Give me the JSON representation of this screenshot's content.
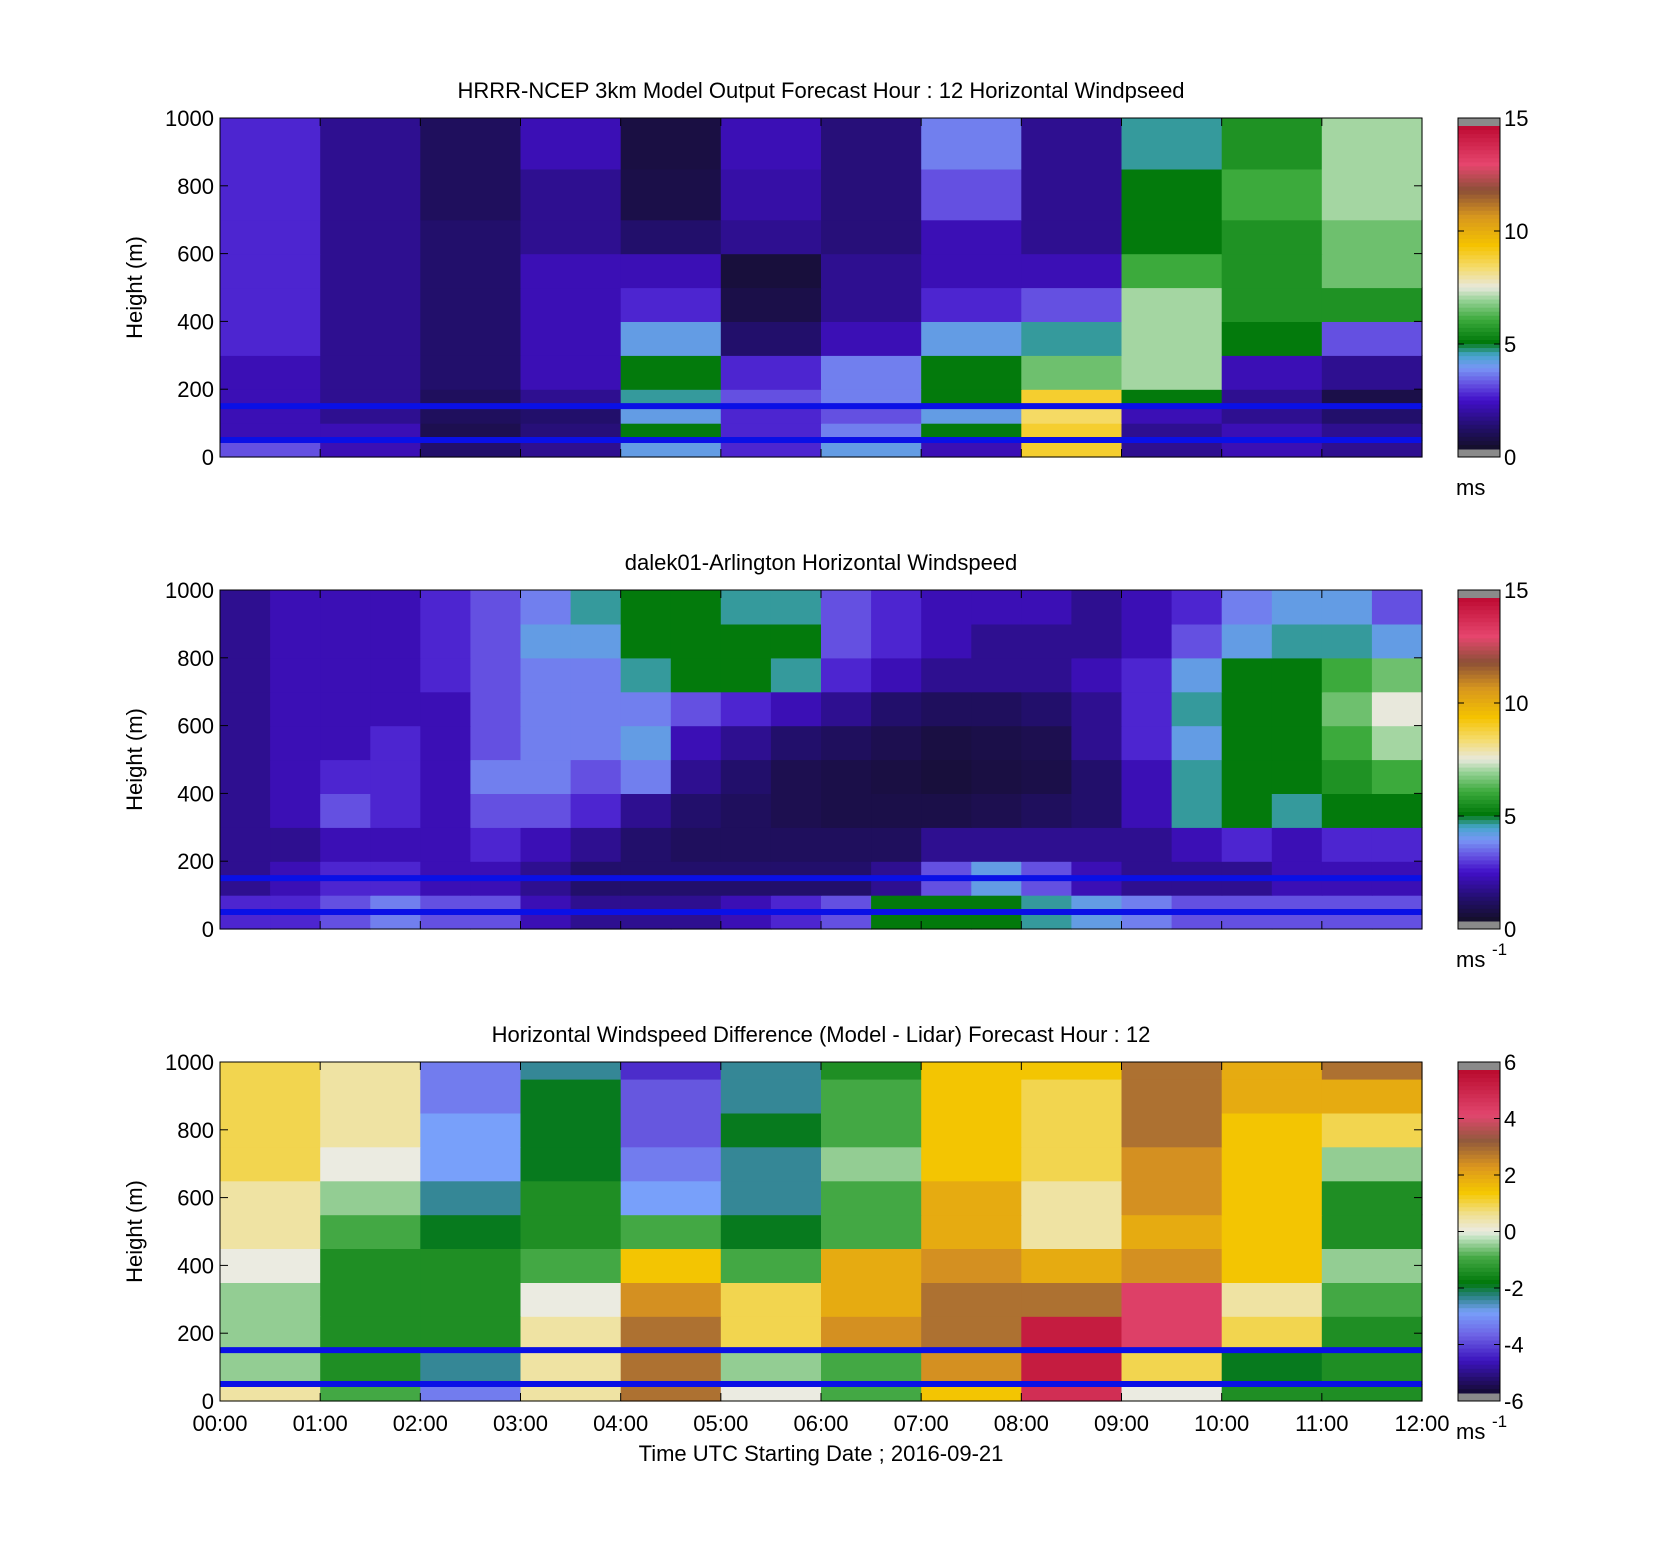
{
  "chart_data": [
    {
      "type": "heatmap",
      "title": "HRRR-NCEP 3km Model Output   Forecast Hour : 12 Horizontal Windpseed",
      "xlabel": "",
      "ylabel": "Height (m)",
      "xlim": [
        0,
        12
      ],
      "ylim": [
        0,
        1000
      ],
      "yticks": [
        "0",
        "200",
        "400",
        "600",
        "800",
        "1000"
      ],
      "colorbar": {
        "min": 0,
        "max": 15,
        "ticks": [
          "0",
          "5",
          "10",
          "15"
        ],
        "unit": "ms",
        "unit_sup": ""
      },
      "reference_lines_m": [
        150,
        50
      ],
      "line_color": "#0a10e6",
      "columns_hours": [
        0,
        1,
        2,
        3,
        4,
        5,
        6,
        7,
        8,
        9,
        10,
        11
      ],
      "levels_m": [
        50,
        100,
        150,
        200,
        300,
        400,
        500,
        600,
        700,
        850,
        1000
      ],
      "values": [
        [
          3.0,
          2.0,
          1.0,
          1.5,
          4.0,
          2.5,
          4.0,
          2.0,
          9.0,
          1.5,
          2.0,
          1.5
        ],
        [
          2.0,
          2.0,
          0.6,
          1.2,
          5.0,
          2.5,
          3.5,
          5.0,
          9.0,
          1.5,
          2.0,
          1.5
        ],
        [
          2.0,
          1.5,
          0.8,
          1.0,
          4.0,
          2.5,
          3.0,
          4.0,
          8.5,
          2.0,
          1.5,
          1.0
        ],
        [
          2.0,
          1.5,
          0.8,
          1.5,
          4.5,
          3.0,
          3.5,
          5.0,
          9.0,
          5.0,
          1.5,
          0.5
        ],
        [
          2.0,
          1.5,
          1.0,
          2.0,
          5.0,
          2.5,
          3.5,
          5.0,
          6.5,
          7.0,
          2.0,
          1.5
        ],
        [
          2.5,
          1.5,
          1.0,
          2.0,
          4.0,
          1.0,
          2.0,
          4.0,
          4.5,
          7.0,
          5.0,
          3.0
        ],
        [
          2.5,
          1.5,
          1.0,
          2.0,
          2.5,
          0.5,
          1.5,
          2.5,
          3.0,
          7.0,
          5.5,
          5.5
        ],
        [
          2.5,
          1.5,
          1.0,
          2.0,
          2.0,
          0.3,
          1.5,
          2.0,
          2.0,
          6.0,
          5.5,
          6.5
        ],
        [
          2.5,
          1.5,
          1.0,
          1.5,
          1.0,
          1.5,
          1.2,
          2.0,
          1.5,
          5.0,
          5.5,
          6.5
        ],
        [
          2.5,
          1.5,
          0.8,
          1.5,
          0.5,
          1.8,
          1.2,
          3.0,
          1.5,
          5.0,
          6.0,
          7.0
        ],
        [
          2.5,
          1.5,
          0.8,
          2.0,
          0.4,
          2.0,
          1.2,
          3.5,
          1.5,
          4.5,
          5.5,
          7.0
        ]
      ]
    },
    {
      "type": "heatmap",
      "title": "dalek01-Arlington  Horizontal Windspeed",
      "xlabel": "",
      "ylabel": "Height (m)",
      "xlim": [
        0,
        12
      ],
      "ylim": [
        0,
        1000
      ],
      "yticks": [
        "0",
        "200",
        "400",
        "600",
        "800",
        "1000"
      ],
      "colorbar": {
        "min": 0,
        "max": 15,
        "ticks": [
          "0",
          "5",
          "10",
          "15"
        ],
        "unit": "ms",
        "unit_sup": "-1"
      },
      "reference_lines_m": [
        150,
        50
      ],
      "line_color": "#0a10e6",
      "columns_hours": [
        0,
        0.5,
        1,
        1.5,
        2,
        2.5,
        3,
        3.5,
        4,
        4.5,
        5,
        5.5,
        6,
        6.5,
        7,
        7.5,
        8,
        8.5,
        9,
        9.5,
        10,
        10.5,
        11,
        11.5
      ],
      "levels_m": [
        100,
        200,
        300,
        400,
        500,
        600,
        700,
        800,
        900,
        1000
      ],
      "values": [
        [
          2.5,
          2.5,
          3.0,
          3.5,
          3.0,
          3.0,
          2.0,
          1.5,
          1.5,
          1.5,
          2.0,
          2.5,
          3.0,
          5.0,
          5.0,
          5.0,
          4.5,
          4.0,
          3.5,
          3.0,
          3.0,
          3.0,
          3.0,
          3.0
        ],
        [
          1.5,
          2.0,
          2.5,
          2.5,
          2.0,
          2.0,
          1.5,
          1.0,
          1.0,
          1.0,
          1.0,
          1.0,
          1.0,
          1.5,
          3.0,
          4.0,
          3.0,
          2.0,
          1.5,
          1.5,
          1.5,
          2.0,
          2.0,
          2.0
        ],
        [
          1.5,
          1.5,
          2.0,
          2.0,
          2.0,
          2.5,
          2.0,
          1.5,
          1.0,
          0.8,
          0.8,
          0.8,
          0.8,
          0.8,
          1.5,
          1.5,
          1.5,
          1.5,
          1.5,
          2.0,
          2.5,
          2.0,
          2.5,
          2.5
        ],
        [
          1.5,
          2.0,
          3.0,
          2.5,
          2.0,
          3.0,
          3.0,
          2.5,
          1.5,
          1.0,
          0.8,
          0.6,
          0.5,
          0.5,
          0.5,
          0.6,
          0.8,
          1.0,
          2.0,
          4.5,
          5.0,
          4.5,
          5.0,
          5.0
        ],
        [
          1.5,
          2.0,
          2.5,
          2.5,
          2.0,
          3.5,
          3.5,
          3.0,
          3.5,
          1.5,
          1.0,
          0.6,
          0.5,
          0.4,
          0.3,
          0.4,
          0.5,
          1.0,
          2.0,
          4.5,
          5.0,
          5.0,
          5.5,
          6.0
        ],
        [
          1.5,
          2.0,
          2.0,
          2.5,
          2.0,
          3.0,
          3.5,
          3.5,
          4.0,
          2.0,
          1.5,
          1.0,
          0.8,
          0.6,
          0.4,
          0.5,
          0.6,
          1.5,
          2.5,
          4.0,
          5.0,
          5.0,
          6.0,
          7.0
        ],
        [
          1.5,
          2.0,
          2.0,
          2.0,
          2.0,
          3.0,
          3.5,
          3.5,
          3.5,
          3.0,
          2.5,
          2.0,
          1.5,
          1.0,
          0.8,
          0.8,
          1.0,
          1.5,
          2.5,
          4.5,
          5.0,
          5.0,
          6.5,
          7.5
        ],
        [
          1.5,
          2.0,
          2.0,
          2.0,
          2.5,
          3.0,
          3.5,
          3.5,
          4.5,
          5.0,
          5.0,
          4.5,
          2.5,
          2.0,
          1.5,
          1.5,
          1.5,
          2.0,
          2.5,
          4.0,
          5.0,
          5.0,
          6.0,
          6.5
        ],
        [
          1.5,
          2.0,
          2.0,
          2.0,
          2.5,
          3.0,
          4.0,
          4.0,
          5.0,
          5.0,
          5.0,
          5.0,
          3.0,
          2.5,
          2.0,
          1.5,
          1.5,
          1.5,
          2.0,
          3.0,
          4.0,
          4.5,
          4.5,
          4.0
        ],
        [
          1.5,
          2.0,
          2.0,
          2.0,
          2.5,
          3.0,
          3.5,
          4.5,
          5.0,
          5.0,
          4.5,
          4.5,
          3.0,
          2.5,
          2.0,
          2.0,
          2.0,
          1.5,
          2.0,
          2.5,
          3.5,
          4.0,
          4.0,
          3.0
        ]
      ]
    },
    {
      "type": "heatmap",
      "title": "Horizontal Windspeed Difference (Model - Lidar) Forecast Hour : 12",
      "xlabel": "Time UTC  Starting Date ; 2016-09-21",
      "ylabel": "Height (m)",
      "xlim": [
        0,
        12
      ],
      "ylim": [
        0,
        1000
      ],
      "xticks": [
        "00:00",
        "01:00",
        "02:00",
        "03:00",
        "04:00",
        "05:00",
        "06:00",
        "07:00",
        "08:00",
        "09:00",
        "10:00",
        "11:00",
        "12:00"
      ],
      "yticks": [
        "0",
        "200",
        "400",
        "600",
        "800",
        "1000"
      ],
      "colorbar": {
        "min": -6,
        "max": 6,
        "ticks": [
          "-6",
          "-4",
          "-2",
          "0",
          "2",
          "4",
          "6"
        ],
        "unit": "ms",
        "unit_sup": "-1"
      },
      "reference_lines_m": [
        150,
        50
      ],
      "line_color": "#0a10e6",
      "columns_hours": [
        0,
        1,
        2,
        3,
        4,
        5,
        6,
        7,
        8,
        9,
        10,
        11
      ],
      "levels_m": [
        50,
        150,
        250,
        350,
        450,
        550,
        650,
        750,
        850,
        950,
        1000
      ],
      "values": [
        [
          0.5,
          -1.0,
          -3.5,
          0.5,
          3.0,
          0.0,
          -1.0,
          1.5,
          5.0,
          0.0,
          -1.5,
          -1.5
        ],
        [
          -0.5,
          -1.5,
          -2.5,
          0.5,
          3.0,
          -0.5,
          -1.0,
          2.5,
          5.5,
          1.0,
          -2.0,
          -1.5
        ],
        [
          -0.5,
          -1.5,
          -1.5,
          0.5,
          3.0,
          1.0,
          2.5,
          3.0,
          5.5,
          4.5,
          1.0,
          -1.5
        ],
        [
          -0.5,
          -1.5,
          -1.5,
          0.0,
          2.5,
          1.0,
          2.0,
          3.0,
          3.0,
          4.5,
          0.5,
          -1.0
        ],
        [
          0.0,
          -1.5,
          -1.5,
          -1.0,
          1.5,
          -1.0,
          2.0,
          2.5,
          2.0,
          2.5,
          1.5,
          -0.5
        ],
        [
          0.5,
          -1.0,
          -2.0,
          -1.5,
          -1.0,
          -2.0,
          -1.0,
          2.0,
          0.5,
          2.0,
          1.5,
          -1.5
        ],
        [
          0.5,
          -0.5,
          -2.5,
          -1.5,
          -3.0,
          -2.5,
          -1.0,
          2.0,
          0.5,
          2.5,
          1.5,
          -1.5
        ],
        [
          1.0,
          0.0,
          -3.0,
          -2.0,
          -3.5,
          -2.5,
          -0.5,
          1.5,
          1.0,
          2.5,
          1.5,
          -0.5
        ],
        [
          1.0,
          0.5,
          -3.0,
          -2.0,
          -4.0,
          -2.0,
          -1.0,
          1.5,
          1.0,
          3.0,
          1.5,
          1.0
        ],
        [
          1.0,
          0.5,
          -3.5,
          -2.0,
          -4.0,
          -2.5,
          -1.0,
          1.5,
          1.0,
          3.0,
          2.0,
          2.0
        ],
        [
          1.0,
          0.5,
          -3.5,
          -2.5,
          -4.5,
          -2.5,
          -1.5,
          1.5,
          1.5,
          3.0,
          2.0,
          3.0
        ]
      ]
    }
  ]
}
